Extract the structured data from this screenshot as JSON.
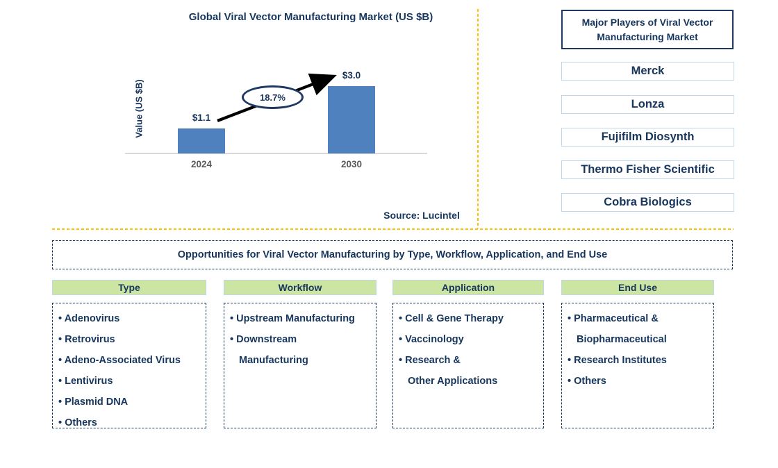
{
  "colors": {
    "navy_text": "#17365D",
    "navy_border": "#1F3864",
    "bar_blue": "#4E81BD",
    "gold_divider": "#FFC000",
    "header_green": "#CDE5A3",
    "light_blue_border": "#BDD7EE",
    "axis_text_gray": "#595959",
    "axis_line_gray": "#D9D9D9",
    "arrow_black": "#000000"
  },
  "chart": {
    "title": "Global Viral Vector Manufacturing Market (US $B)",
    "y_axis_label": "Value (US $B)",
    "growth_annotation": "18.7%",
    "source": "Source: Lucintel"
  },
  "chart_data": {
    "type": "bar",
    "title": "Global Viral Vector Manufacturing Market (US $B)",
    "categories": [
      "2024",
      "2030"
    ],
    "values": [
      1.1,
      3.0
    ],
    "data_labels": [
      "$1.1",
      "$3.0"
    ],
    "xlabel": "",
    "ylabel": "Value (US $B)",
    "ylim": [
      0,
      3.3
    ],
    "grid": false,
    "legend": "none",
    "annotations": [
      {
        "text": "18.7%",
        "shape": "ellipse",
        "meaning": "growth rate between 2024 and 2030, with arrow from 2024 bar to 2030 bar"
      }
    ]
  },
  "players": {
    "title": "Major Players of Viral Vector\nManufacturing Market",
    "items": [
      "Merck",
      "Lonza",
      "Fujifilm Diosynth",
      "Thermo Fisher Scientific",
      "Cobra Biologics"
    ]
  },
  "opportunities": {
    "banner": "Opportunities for Viral Vector Manufacturing by Type, Workflow, Application, and End Use",
    "bullet_char": "•",
    "columns": [
      {
        "header": "Type",
        "items": [
          "Adenovirus",
          "Retrovirus",
          "Adeno-Associated Virus",
          "Lentivirus",
          "Plasmid DNA",
          "Others"
        ]
      },
      {
        "header": "Workflow",
        "items": [
          "Upstream Manufacturing",
          "Downstream\nManufacturing"
        ]
      },
      {
        "header": "Application",
        "items": [
          "Cell & Gene Therapy",
          "Vaccinology",
          "Research &\nOther Applications"
        ]
      },
      {
        "header": "End Use",
        "items": [
          "Pharmaceutical &\nBiopharmaceutical",
          "Research Institutes",
          "Others"
        ]
      }
    ]
  }
}
